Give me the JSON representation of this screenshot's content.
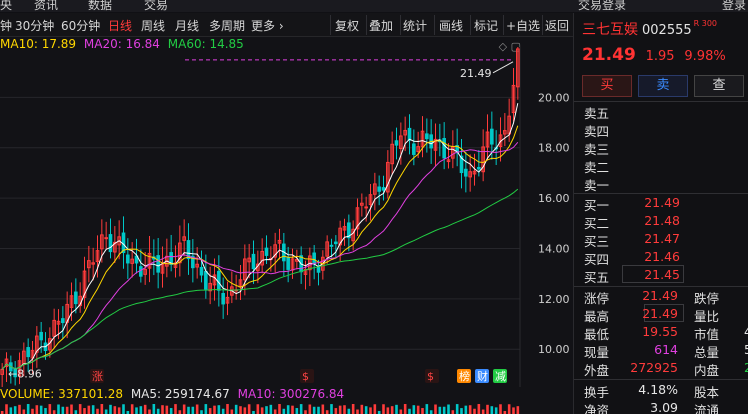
{
  "top_nav": [
    "央",
    "资讯",
    "数据",
    "交易"
  ],
  "account_label": "交易登录",
  "user_label": "登录",
  "toolbar": {
    "left": [
      "钟",
      "30分钟",
      "60分钟",
      "日线",
      "周线",
      "月线",
      "多周期",
      "更多 ›"
    ],
    "active": "日线",
    "right": [
      "复权",
      "叠加",
      "统计",
      "画线",
      "标记",
      "+自选",
      "返回"
    ]
  },
  "indicators": {
    "ma10": "MA10: 17.89",
    "ma20": "MA20: 16.84",
    "ma60": "MA60: 14.85",
    "vol": "VOLUME: 337101.28",
    "vol_ma5": "MA5: 259174.67",
    "vol_ma10": "MA10: 300276.84"
  },
  "chart_data": {
    "type": "candlestick",
    "y_ticks": [
      "20.00",
      "18.00",
      "16.00",
      "14.00",
      "12.00",
      "10.00"
    ],
    "ylim": [
      8.5,
      22.0
    ],
    "high_label": "21.49",
    "low_label": "8.96",
    "markers": [
      "涨",
      "$",
      "$",
      "榜",
      "财",
      "减"
    ],
    "colors": {
      "up": "#ff3b3b",
      "down": "#00c8c8",
      "ma5": "#ffffff",
      "ma10": "#ffd700",
      "ma20": "#e040e0",
      "ma60": "#22cc44"
    }
  },
  "stock": {
    "name": "三七互娱",
    "code": "002555",
    "badge": "R",
    "badge2": "300",
    "price": "21.49",
    "change": "1.95",
    "pct": "9.98%"
  },
  "buttons": {
    "buy": "买",
    "sell": "卖",
    "check": "查"
  },
  "asks": [
    {
      "label": "卖五",
      "value": ""
    },
    {
      "label": "卖四",
      "value": ""
    },
    {
      "label": "卖三",
      "value": ""
    },
    {
      "label": "卖二",
      "value": ""
    },
    {
      "label": "卖一",
      "value": ""
    }
  ],
  "bids": [
    {
      "label": "买一",
      "value": "21.49"
    },
    {
      "label": "买二",
      "value": "21.48"
    },
    {
      "label": "买三",
      "value": "21.47"
    },
    {
      "label": "买四",
      "value": "21.46"
    },
    {
      "label": "买五",
      "value": "21.45"
    }
  ],
  "stats": [
    {
      "l": "涨停",
      "v": "21.49",
      "c": "red",
      "l2": "跌停",
      "v2": ""
    },
    {
      "l": "最高",
      "v": "21.49",
      "c": "red",
      "l2": "量比",
      "v2": ""
    },
    {
      "l": "最低",
      "v": "19.55",
      "c": "red",
      "l2": "市值",
      "v2": "4"
    },
    {
      "l": "现量",
      "v": "614",
      "c": "mag",
      "l2": "总量",
      "v2": "5"
    },
    {
      "l": "外盘",
      "v": "272925",
      "c": "red",
      "l2": "内盘",
      "v2": "2"
    },
    {
      "l": "换手",
      "v": "4.18%",
      "c": "white",
      "l2": "股本",
      "v2": ""
    },
    {
      "l": "净资",
      "v": "3.09",
      "c": "white",
      "l2": "流通",
      "v2": ""
    }
  ]
}
